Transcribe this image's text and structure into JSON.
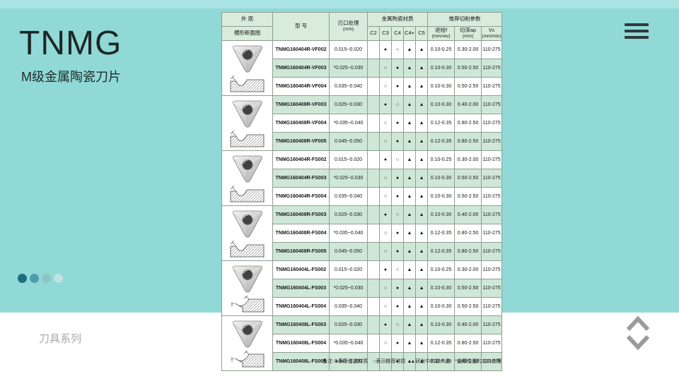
{
  "page": {
    "title": "TNMG",
    "subtitle": "M级金属陶瓷刀片",
    "series_label": "刀具系列",
    "colors": {
      "background_teal": "#90d9d6",
      "top_strip_teal": "#a9e3e4",
      "row_green": "#cfe7d7",
      "header_green": "#d9ebda",
      "menu_dark": "#2f3b3b",
      "chevron_gray": "#9b9b9b"
    },
    "carousel_dots": [
      "#1d6e7f",
      "#4e9dab",
      "#8ac6c9",
      "#bde4e2"
    ]
  },
  "table": {
    "header": {
      "appearance": "外 观",
      "groove": "槽形断面图",
      "model": "型 号",
      "edge_l1": "刃口处理",
      "edge_l2": "(mm)",
      "material_group": "金属陶瓷材质",
      "material_cols": [
        "C2",
        "C3",
        "C4",
        "C4+",
        "C5"
      ],
      "params_group": "推荐切削参数",
      "param_cols": [
        {
          "l1": "进给f",
          "l2": "(mm/rev)"
        },
        {
          "l1": "切深ap",
          "l2": "(mm)"
        },
        {
          "l1": "Vc",
          "l2": "(mm/min)"
        }
      ]
    },
    "groups": [
      {
        "variant": "R",
        "rows": [
          {
            "model": "TNMG160404R-VF002",
            "edge": "0.015~0.020",
            "c2": "",
            "c3": "●",
            "c4": "○",
            "c4p": "▲",
            "c5": "▲",
            "feed": "0.10-0.25",
            "depth": "0.30-2.00",
            "vc": "110-275",
            "shade": false
          },
          {
            "model": "TNMG160404R-VF003",
            "edge": "*0.025~0.030",
            "c2": "",
            "c3": "○",
            "c4": "●",
            "c4p": "▲",
            "c5": "▲",
            "feed": "0.10-0.30",
            "depth": "0.50-2.50",
            "vc": "110-275",
            "shade": true
          },
          {
            "model": "TNMG160404R-VF004",
            "edge": "0.035~0.040",
            "c2": "",
            "c3": "○",
            "c4": "●",
            "c4p": "▲",
            "c5": "▲",
            "feed": "0.10-0.30",
            "depth": "0.50-2.50",
            "vc": "110-275",
            "shade": false
          }
        ]
      },
      {
        "variant": "R",
        "rows": [
          {
            "model": "TNMG160408R-VF003",
            "edge": "0.025~0.030",
            "c2": "",
            "c3": "●",
            "c4": "○",
            "c4p": "▲",
            "c5": "▲",
            "feed": "0.10-0.30",
            "depth": "0.40-2.00",
            "vc": "110-275",
            "shade": true
          },
          {
            "model": "TNMG160408R-VF004",
            "edge": "*0.035~0.040",
            "c2": "",
            "c3": "○",
            "c4": "●",
            "c4p": "▲",
            "c5": "▲",
            "feed": "0.12-0.35",
            "depth": "0.80-2.50",
            "vc": "110-275",
            "shade": false
          },
          {
            "model": "TNMG160408R-VF005",
            "edge": "0.045~0.050",
            "c2": "",
            "c3": "○",
            "c4": "●",
            "c4p": "▲",
            "c5": "▲",
            "feed": "0.12-0.35",
            "depth": "0.80-2.50",
            "vc": "110-275",
            "shade": true
          }
        ]
      },
      {
        "variant": "R",
        "rows": [
          {
            "model": "TNMG160404R-FS002",
            "edge": "0.015~0.020",
            "c2": "",
            "c3": "●",
            "c4": "○",
            "c4p": "▲",
            "c5": "▲",
            "feed": "0.10-0.25",
            "depth": "0.30-2.00",
            "vc": "110-275",
            "shade": false
          },
          {
            "model": "TNMG160404R-FS003",
            "edge": "*0.025~0.030",
            "c2": "",
            "c3": "○",
            "c4": "●",
            "c4p": "▲",
            "c5": "▲",
            "feed": "0.10-0.30",
            "depth": "0.50-2.50",
            "vc": "110-275",
            "shade": true
          },
          {
            "model": "TNMG160404R-FS004",
            "edge": "0.035~0.040",
            "c2": "",
            "c3": "○",
            "c4": "●",
            "c4p": "▲",
            "c5": "▲",
            "feed": "0.10-0.30",
            "depth": "0.50-2.50",
            "vc": "110-275",
            "shade": false
          }
        ]
      },
      {
        "variant": "R",
        "rows": [
          {
            "model": "TNMG160408R-FS003",
            "edge": "0.025~0.030",
            "c2": "",
            "c3": "●",
            "c4": "○",
            "c4p": "▲",
            "c5": "▲",
            "feed": "0.10-0.30",
            "depth": "0.40-2.00",
            "vc": "110-275",
            "shade": true
          },
          {
            "model": "TNMG160408R-FS004",
            "edge": "*0.035~0.040",
            "c2": "",
            "c3": "○",
            "c4": "●",
            "c4p": "▲",
            "c5": "▲",
            "feed": "0.12-0.35",
            "depth": "0.80-2.50",
            "vc": "110-275",
            "shade": false
          },
          {
            "model": "TNMG160408R-FS005",
            "edge": "0.045~0.050",
            "c2": "",
            "c3": "○",
            "c4": "●",
            "c4p": "▲",
            "c5": "▲",
            "feed": "0.12-0.35",
            "depth": "0.80-2.50",
            "vc": "110-275",
            "shade": true
          }
        ]
      },
      {
        "variant": "L",
        "rows": [
          {
            "model": "TNMG160404L-FS002",
            "edge": "0.015~0.020",
            "c2": "",
            "c3": "●",
            "c4": "○",
            "c4p": "▲",
            "c5": "▲",
            "feed": "0.10-0.25",
            "depth": "0.30-2.00",
            "vc": "110-275",
            "shade": false
          },
          {
            "model": "TNMG160404L-FS003",
            "edge": "*0.025~0.030",
            "c2": "",
            "c3": "○",
            "c4": "●",
            "c4p": "▲",
            "c5": "▲",
            "feed": "0.10-0.30",
            "depth": "0.50-2.50",
            "vc": "110-275",
            "shade": true
          },
          {
            "model": "TNMG160404L-FS004",
            "edge": "0.035~0.040",
            "c2": "",
            "c3": "○",
            "c4": "●",
            "c4p": "▲",
            "c5": "▲",
            "feed": "0.10-0.30",
            "depth": "0.50-2.50",
            "vc": "110-275",
            "shade": false
          }
        ]
      },
      {
        "variant": "L",
        "rows": [
          {
            "model": "TNMG160408L-FS003",
            "edge": "0.025~0.030",
            "c2": "",
            "c3": "●",
            "c4": "○",
            "c4p": "▲",
            "c5": "▲",
            "feed": "0.10-0.30",
            "depth": "0.40-2.00",
            "vc": "110-275",
            "shade": true
          },
          {
            "model": "TNMG160408L-FS004",
            "edge": "*0.035~0.040",
            "c2": "",
            "c3": "○",
            "c4": "●",
            "c4p": "▲",
            "c5": "▲",
            "feed": "0.12-0.35",
            "depth": "0.80-2.50",
            "vc": "110-275",
            "shade": false
          },
          {
            "model": "TNMG160408L-FS005",
            "edge": "0.045~0.050",
            "c2": "",
            "c3": "○",
            "c4": "●",
            "c4p": "▲",
            "c5": "▲",
            "feed": "0.12-0.35",
            "depth": "0.80-2.50",
            "vc": "110-275",
            "shade": true
          }
        ]
      }
    ],
    "note": "备注: ●表示首选材质　○表示推荐材质　▲研发中的新产品　*通用性强的刃口处理"
  }
}
